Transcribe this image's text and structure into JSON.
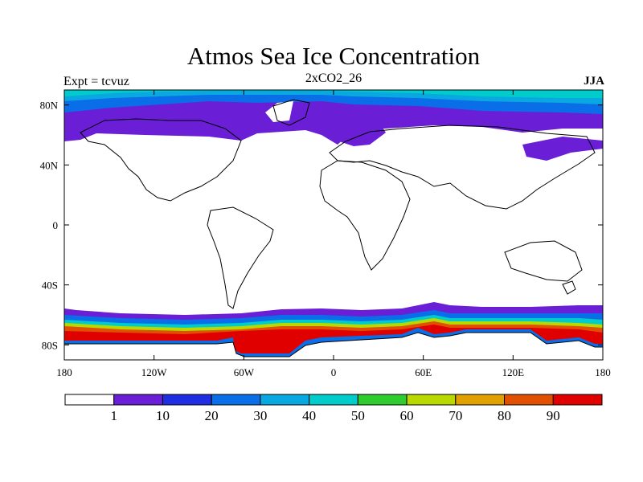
{
  "header": {
    "title": "Atmos Sea Ice Concentration",
    "subtitle": "2xCO2_26",
    "experiment": "Expt = tcvuz",
    "season": "JJA"
  },
  "map": {
    "projection": "cylindrical-equidistant",
    "lon_range": [
      -180,
      180
    ],
    "lat_range": [
      -90,
      90
    ],
    "x_ticks": [
      {
        "lon": -180,
        "label": "180"
      },
      {
        "lon": -120,
        "label": "120W"
      },
      {
        "lon": -60,
        "label": "60W"
      },
      {
        "lon": 0,
        "label": "0"
      },
      {
        "lon": 60,
        "label": "60E"
      },
      {
        "lon": 120,
        "label": "120E"
      },
      {
        "lon": 180,
        "label": "180"
      }
    ],
    "y_ticks": [
      {
        "lat": 80,
        "label": "80N"
      },
      {
        "lat": 40,
        "label": "40N"
      },
      {
        "lat": 0,
        "label": "0"
      },
      {
        "lat": -40,
        "label": "40S"
      },
      {
        "lat": -80,
        "label": "80S"
      }
    ]
  },
  "colorbar": {
    "colors": [
      "#ffffff",
      "#6a1ed6",
      "#1f2ee0",
      "#0a6ee8",
      "#0aa8e0",
      "#00cccc",
      "#2ecc2e",
      "#b8d800",
      "#e0a000",
      "#e05000",
      "#e00000"
    ],
    "labels": [
      "1",
      "10",
      "20",
      "30",
      "40",
      "50",
      "60",
      "70",
      "80",
      "90"
    ]
  }
}
